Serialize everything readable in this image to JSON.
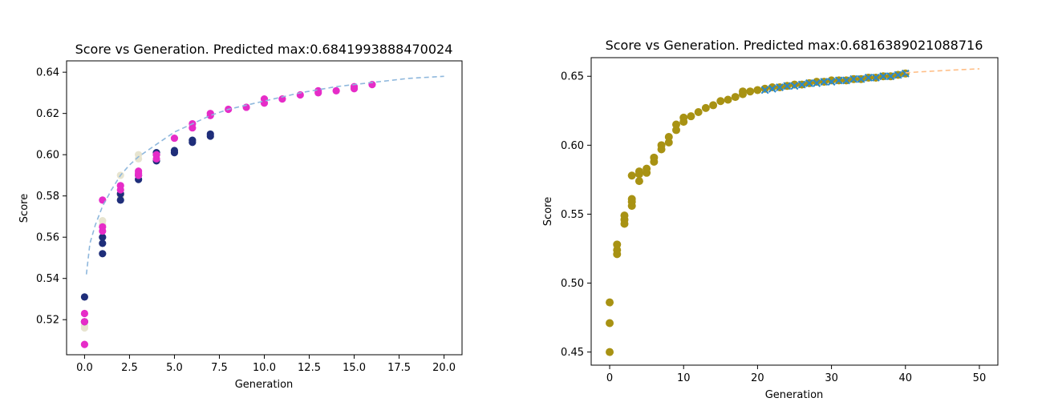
{
  "chart_data": [
    {
      "type": "scatter",
      "title": "Score vs Generation. Predicted max:0.6841993888470024",
      "xlabel": "Generation",
      "ylabel": "Score",
      "xlim": [
        -1.0,
        21.0
      ],
      "ylim": [
        0.503,
        0.6455
      ],
      "xticks": [
        0.0,
        2.5,
        5.0,
        7.5,
        10.0,
        12.5,
        15.0,
        17.5,
        20.0
      ],
      "xtick_labels": [
        "0.0",
        "2.5",
        "5.0",
        "7.5",
        "10.0",
        "12.5",
        "15.0",
        "17.5",
        "20.0"
      ],
      "yticks": [
        0.52,
        0.54,
        0.56,
        0.58,
        0.6,
        0.62,
        0.64
      ],
      "ytick_labels": [
        "0.52",
        "0.54",
        "0.56",
        "0.58",
        "0.60",
        "0.62",
        "0.64"
      ],
      "series": [
        {
          "color": "#e7e4cf",
          "marker": "circle",
          "points": [
            [
              0,
              0.516
            ],
            [
              0,
              0.517
            ],
            [
              1,
              0.568
            ],
            [
              1,
              0.566
            ],
            [
              2,
              0.59
            ],
            [
              2,
              0.58
            ],
            [
              3,
              0.6
            ],
            [
              3,
              0.598
            ],
            [
              4,
              0.6
            ]
          ]
        },
        {
          "color": "#1f2e7a",
          "marker": "circle",
          "points": [
            [
              0,
              0.531
            ],
            [
              0,
              0.519
            ],
            [
              1,
              0.552
            ],
            [
              1,
              0.557
            ],
            [
              1,
              0.56
            ],
            [
              2,
              0.578
            ],
            [
              2,
              0.581
            ],
            [
              3,
              0.588
            ],
            [
              3,
              0.59
            ],
            [
              4,
              0.597
            ],
            [
              4,
              0.6
            ],
            [
              4,
              0.601
            ],
            [
              5,
              0.601
            ],
            [
              5,
              0.602
            ],
            [
              6,
              0.606
            ],
            [
              6,
              0.607
            ],
            [
              7,
              0.609
            ],
            [
              7,
              0.61
            ]
          ]
        },
        {
          "color": "#e62cc8",
          "marker": "circle",
          "points": [
            [
              0,
              0.508
            ],
            [
              0,
              0.519
            ],
            [
              0,
              0.523
            ],
            [
              1,
              0.563
            ],
            [
              1,
              0.565
            ],
            [
              1,
              0.578
            ],
            [
              2,
              0.583
            ],
            [
              2,
              0.585
            ],
            [
              3,
              0.59
            ],
            [
              3,
              0.591
            ],
            [
              3,
              0.592
            ],
            [
              4,
              0.598
            ],
            [
              4,
              0.6
            ],
            [
              5,
              0.608
            ],
            [
              6,
              0.613
            ],
            [
              6,
              0.615
            ],
            [
              7,
              0.619
            ],
            [
              7,
              0.62
            ],
            [
              8,
              0.622
            ],
            [
              9,
              0.623
            ],
            [
              10,
              0.625
            ],
            [
              10,
              0.627
            ],
            [
              11,
              0.627
            ],
            [
              12,
              0.629
            ],
            [
              13,
              0.63
            ],
            [
              13,
              0.631
            ],
            [
              14,
              0.631
            ],
            [
              15,
              0.632
            ],
            [
              15,
              0.633
            ],
            [
              16,
              0.634
            ]
          ]
        }
      ],
      "fit_line": {
        "style": "dashed",
        "color": "#8fb8dd",
        "x": [
          0.1,
          0.3,
          0.6,
          1,
          1.5,
          2,
          2.5,
          3,
          4,
          5,
          6,
          7,
          8,
          10,
          12,
          14,
          16,
          18,
          20
        ],
        "y": [
          0.542,
          0.557,
          0.566,
          0.575,
          0.583,
          0.59,
          0.595,
          0.599,
          0.605,
          0.611,
          0.615,
          0.619,
          0.622,
          0.626,
          0.63,
          0.633,
          0.635,
          0.637,
          0.638
        ]
      }
    },
    {
      "type": "scatter",
      "title": "Score vs Generation. Predicted max:0.6816389021088716",
      "xlabel": "Generation",
      "ylabel": "Score",
      "xlim": [
        -2.5,
        52.5
      ],
      "ylim": [
        0.4405,
        0.6635
      ],
      "xticks": [
        0,
        10,
        20,
        30,
        40,
        50
      ],
      "xtick_labels": [
        "0",
        "10",
        "20",
        "30",
        "40",
        "50"
      ],
      "yticks": [
        0.45,
        0.5,
        0.55,
        0.6,
        0.65
      ],
      "ytick_labels": [
        "0.45",
        "0.50",
        "0.55",
        "0.60",
        "0.65"
      ],
      "series": [
        {
          "color": "#a89213",
          "marker": "circle",
          "points": [
            [
              0,
              0.45
            ],
            [
              0,
              0.471
            ],
            [
              0,
              0.486
            ],
            [
              1,
              0.521
            ],
            [
              1,
              0.524
            ],
            [
              1,
              0.528
            ],
            [
              2,
              0.543
            ],
            [
              2,
              0.546
            ],
            [
              2,
              0.549
            ],
            [
              3,
              0.556
            ],
            [
              3,
              0.559
            ],
            [
              3,
              0.561
            ],
            [
              3,
              0.578
            ],
            [
              4,
              0.574
            ],
            [
              4,
              0.579
            ],
            [
              4,
              0.581
            ],
            [
              5,
              0.58
            ],
            [
              5,
              0.583
            ],
            [
              6,
              0.588
            ],
            [
              6,
              0.591
            ],
            [
              7,
              0.597
            ],
            [
              7,
              0.6
            ],
            [
              8,
              0.602
            ],
            [
              8,
              0.606
            ],
            [
              9,
              0.611
            ],
            [
              9,
              0.615
            ],
            [
              10,
              0.617
            ],
            [
              10,
              0.62
            ],
            [
              11,
              0.621
            ],
            [
              12,
              0.624
            ],
            [
              13,
              0.627
            ],
            [
              14,
              0.629
            ],
            [
              15,
              0.632
            ],
            [
              16,
              0.633
            ],
            [
              17,
              0.635
            ],
            [
              18,
              0.637
            ],
            [
              18,
              0.639
            ],
            [
              19,
              0.639
            ],
            [
              20,
              0.64
            ],
            [
              21,
              0.641
            ],
            [
              22,
              0.642
            ],
            [
              23,
              0.642
            ],
            [
              24,
              0.643
            ],
            [
              25,
              0.644
            ],
            [
              26,
              0.644
            ],
            [
              27,
              0.645
            ],
            [
              28,
              0.646
            ],
            [
              29,
              0.646
            ],
            [
              30,
              0.647
            ],
            [
              31,
              0.647
            ],
            [
              32,
              0.647
            ],
            [
              33,
              0.648
            ],
            [
              34,
              0.648
            ],
            [
              35,
              0.649
            ],
            [
              36,
              0.649
            ],
            [
              37,
              0.65
            ],
            [
              38,
              0.65
            ],
            [
              39,
              0.651
            ],
            [
              40,
              0.652
            ]
          ]
        },
        {
          "color": "#2a88c9",
          "marker": "x",
          "points": [
            [
              21,
              0.64
            ],
            [
              22,
              0.641
            ],
            [
              23,
              0.642
            ],
            [
              24,
              0.643
            ],
            [
              25,
              0.643
            ],
            [
              26,
              0.644
            ],
            [
              27,
              0.645
            ],
            [
              28,
              0.645
            ],
            [
              29,
              0.646
            ],
            [
              30,
              0.646
            ],
            [
              31,
              0.647
            ],
            [
              32,
              0.647
            ],
            [
              33,
              0.648
            ],
            [
              34,
              0.648
            ],
            [
              35,
              0.649
            ],
            [
              36,
              0.649
            ],
            [
              37,
              0.65
            ],
            [
              38,
              0.65
            ],
            [
              39,
              0.651
            ],
            [
              40,
              0.652
            ]
          ]
        }
      ],
      "fit_line": {
        "style": "dashed",
        "color": "#ffbe86",
        "x": [
          40,
          42,
          44,
          46,
          48,
          50
        ],
        "y": [
          0.6525,
          0.6532,
          0.6538,
          0.6544,
          0.6549,
          0.6554
        ]
      }
    }
  ]
}
